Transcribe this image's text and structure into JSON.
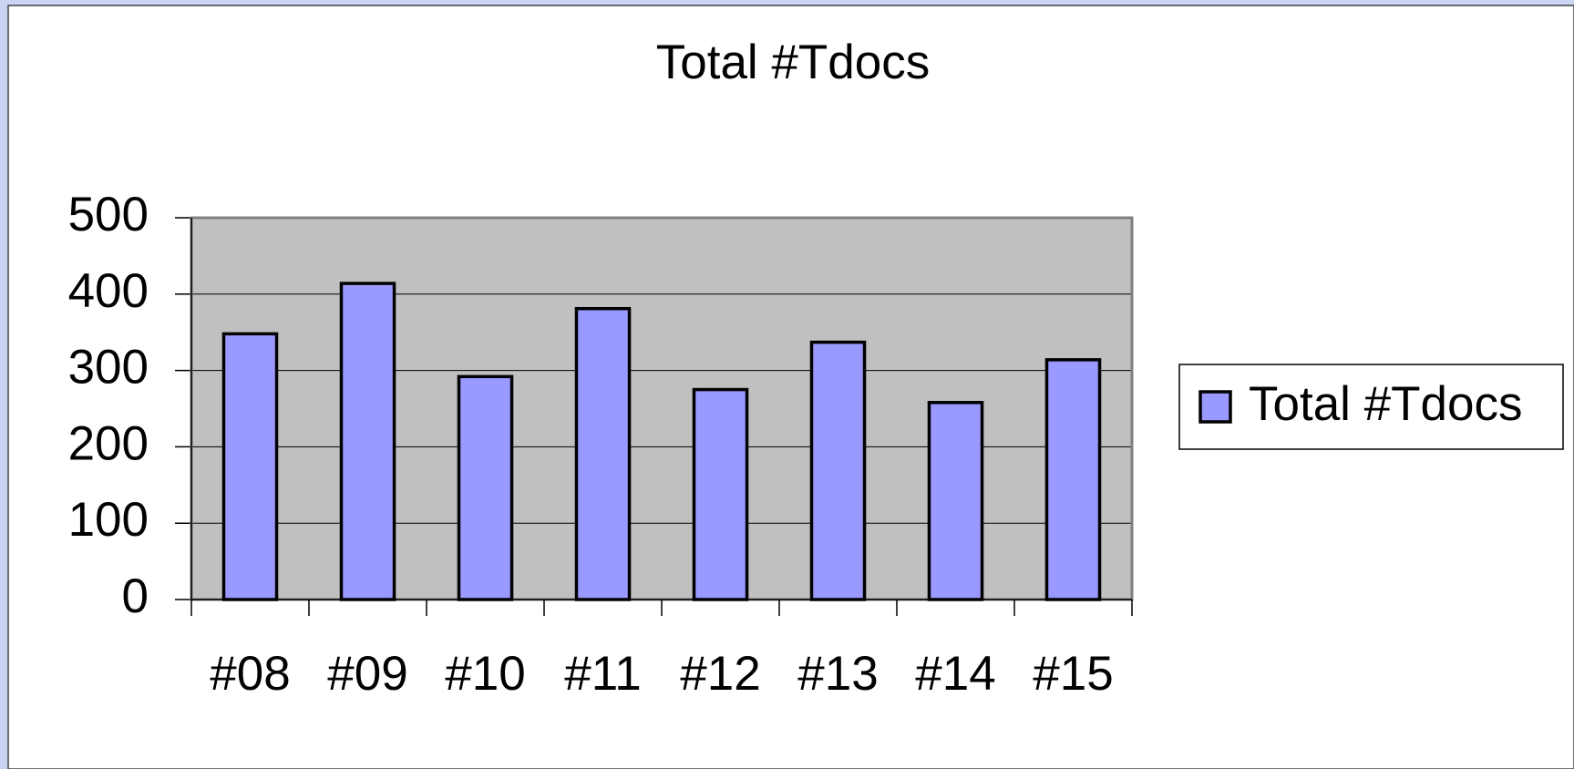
{
  "chart_data": {
    "type": "bar",
    "title": "Total #Tdocs",
    "categories": [
      "#08",
      "#09",
      "#10",
      "#11",
      "#12",
      "#13",
      "#14",
      "#15"
    ],
    "series": [
      {
        "name": "Total #Tdocs",
        "color": "#9999ff",
        "values": [
          348,
          414,
          292,
          381,
          275,
          337,
          258,
          314
        ]
      }
    ],
    "ylim": [
      0,
      500
    ],
    "yticks": [
      0,
      100,
      200,
      300,
      400,
      500
    ],
    "grid": true,
    "legend": "right"
  }
}
